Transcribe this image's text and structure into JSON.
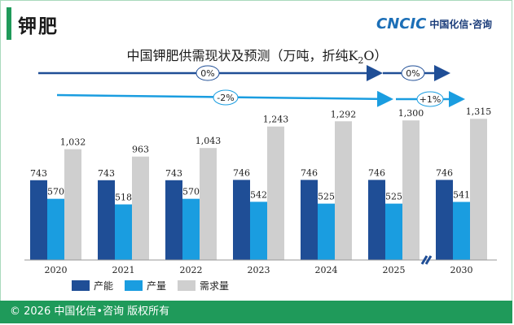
{
  "header": {
    "title": "钾肥",
    "logo_mark": "CNCIC",
    "logo_text": "中国化信·咨询"
  },
  "footer": {
    "text": "© 2026 中国化信•咨询 版权所有"
  },
  "colors": {
    "capacity": "#1f4e96",
    "output": "#1a9de0",
    "demand": "#cfcfcf",
    "accent": "#1f9a5a",
    "arrow_top": "#1f4e96",
    "arrow_bottom": "#1a9de0"
  },
  "growth_labels": {
    "capacity_hist": "0%",
    "capacity_fcst": "0%",
    "output_hist": "-2%",
    "output_fcst": "+1%"
  },
  "chart_data": {
    "type": "bar",
    "title": "中国钾肥供需现状及预测（万吨，折纯K2O）",
    "categories": [
      "2020",
      "2021",
      "2022",
      "2023",
      "2024",
      "2025",
      "2030"
    ],
    "series": [
      {
        "name": "产能",
        "values": [
          743,
          743,
          743,
          746,
          746,
          746,
          746
        ]
      },
      {
        "name": "产量",
        "values": [
          570,
          518,
          570,
          542,
          525,
          525,
          541
        ]
      },
      {
        "name": "需求量",
        "values": [
          1032,
          963,
          1043,
          1243,
          1292,
          1300,
          1315
        ]
      }
    ],
    "value_labels": [
      [
        "743",
        "743",
        "743",
        "746",
        "746",
        "746",
        "746"
      ],
      [
        "570",
        "518",
        "570",
        "542",
        "525",
        "525",
        "541"
      ],
      [
        "1,032",
        "963",
        "1,043",
        "1,243",
        "1,292",
        "1,300",
        "1,315"
      ]
    ],
    "axis_break_between": [
      "2025",
      "2030"
    ],
    "legend_position": "bottom-left",
    "ylim": [
      0,
      1400
    ],
    "grid": false
  }
}
